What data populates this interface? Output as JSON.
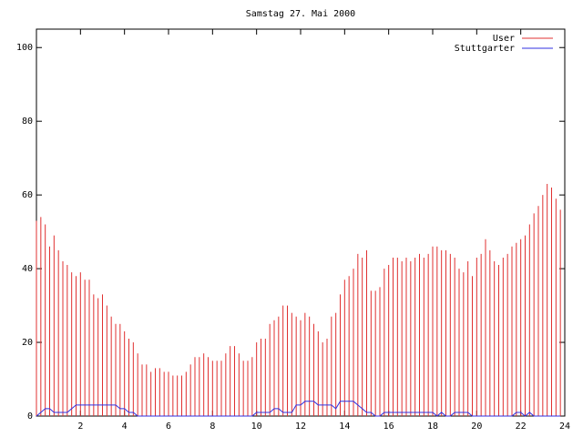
{
  "chart_data": {
    "type": "impulses-line",
    "title": "Samstag 27. Mai 2000",
    "xlim": [
      0,
      24
    ],
    "ylim": [
      0,
      105
    ],
    "xticks": [
      2,
      4,
      6,
      8,
      10,
      12,
      14,
      16,
      18,
      20,
      22,
      24
    ],
    "yticks": [
      0,
      20,
      40,
      60,
      80,
      100
    ],
    "x": [
      0,
      0.2,
      0.4,
      0.6,
      0.8,
      1,
      1.2,
      1.4,
      1.6,
      1.8,
      2,
      2.2,
      2.4,
      2.6,
      2.8,
      3,
      3.2,
      3.4,
      3.6,
      3.8,
      4,
      4.2,
      4.4,
      4.6,
      4.8,
      5,
      5.2,
      5.4,
      5.6,
      5.8,
      6,
      6.2,
      6.4,
      6.6,
      6.8,
      7,
      7.2,
      7.4,
      7.6,
      7.8,
      8,
      8.2,
      8.4,
      8.6,
      8.8,
      9,
      9.2,
      9.4,
      9.6,
      9.8,
      10,
      10.2,
      10.4,
      10.6,
      10.8,
      11,
      11.2,
      11.4,
      11.6,
      11.8,
      12,
      12.2,
      12.4,
      12.6,
      12.8,
      13,
      13.2,
      13.4,
      13.6,
      13.8,
      14,
      14.2,
      14.4,
      14.6,
      14.8,
      15,
      15.2,
      15.4,
      15.6,
      15.8,
      16,
      16.2,
      16.4,
      16.6,
      16.8,
      17,
      17.2,
      17.4,
      17.6,
      17.8,
      18,
      18.2,
      18.4,
      18.6,
      18.8,
      19,
      19.2,
      19.4,
      19.6,
      19.8,
      20,
      20.2,
      20.4,
      20.6,
      20.8,
      21,
      21.2,
      21.4,
      21.6,
      21.8,
      22,
      22.2,
      22.4,
      22.6,
      22.8,
      23,
      23.2,
      23.4,
      23.6,
      23.8
    ],
    "series": [
      {
        "name": "User",
        "color": "#e03030",
        "style": "impulses",
        "values": [
          53,
          54,
          52,
          46,
          49,
          45,
          42,
          41,
          39,
          38,
          39,
          37,
          37,
          33,
          32,
          33,
          30,
          27,
          25,
          25,
          23,
          21,
          20,
          17,
          14,
          14,
          12,
          13,
          13,
          12,
          12,
          11,
          11,
          11,
          12,
          14,
          16,
          16,
          17,
          16,
          15,
          15,
          15,
          17,
          19,
          19,
          17,
          15,
          15,
          16,
          20,
          21,
          21,
          25,
          26,
          27,
          30,
          30,
          28,
          27,
          26,
          28,
          27,
          25,
          23,
          20,
          21,
          27,
          28,
          33,
          37,
          38,
          40,
          44,
          43,
          45,
          34,
          34,
          35,
          40,
          41,
          43,
          43,
          42,
          43,
          42,
          43,
          44,
          43,
          44,
          46,
          46,
          45,
          45,
          44,
          43,
          40,
          39,
          42,
          38,
          43,
          44,
          48,
          45,
          42,
          41,
          43,
          44,
          46,
          47,
          48,
          49,
          52,
          55,
          57,
          60,
          63,
          62,
          59,
          56
        ]
      },
      {
        "name": "Stuttgarter",
        "color": "#3030e0",
        "style": "line",
        "values": [
          0,
          1,
          2,
          2,
          1,
          1,
          1,
          1,
          2,
          3,
          3,
          3,
          3,
          3,
          3,
          3,
          3,
          3,
          3,
          2,
          2,
          1,
          1,
          0,
          0,
          0,
          0,
          0,
          0,
          0,
          0,
          0,
          0,
          0,
          0,
          0,
          0,
          0,
          0,
          0,
          0,
          0,
          0,
          0,
          0,
          0,
          0,
          0,
          0,
          0,
          1,
          1,
          1,
          1,
          2,
          2,
          1,
          1,
          1,
          3,
          3,
          4,
          4,
          4,
          3,
          3,
          3,
          3,
          2,
          4,
          4,
          4,
          4,
          3,
          2,
          1,
          1,
          0,
          0,
          1,
          1,
          1,
          1,
          1,
          1,
          1,
          1,
          1,
          1,
          1,
          1,
          0,
          1,
          0,
          0,
          1,
          1,
          1,
          1,
          0,
          0,
          0,
          0,
          0,
          0,
          0,
          0,
          0,
          0,
          1,
          1,
          0,
          1,
          0,
          0,
          0,
          0,
          0,
          0,
          0
        ]
      }
    ]
  }
}
